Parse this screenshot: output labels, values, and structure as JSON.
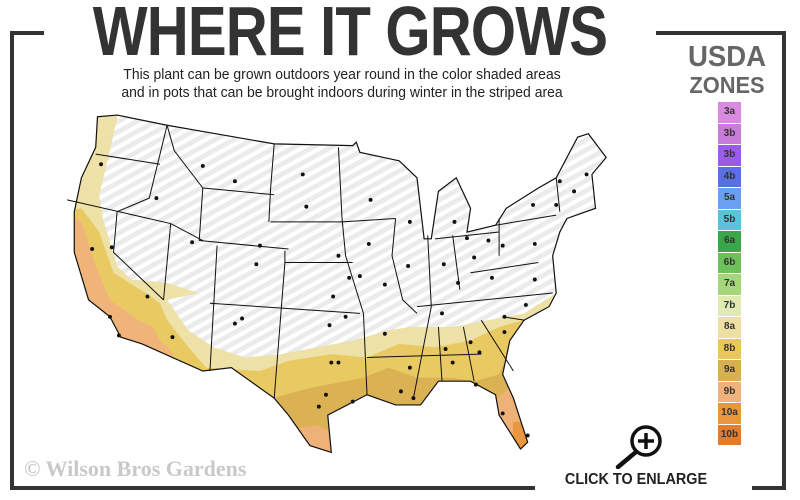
{
  "header": {
    "title": "WHERE IT GROWS",
    "subtitle_line1": "This plant can be grown outdoors year round in the color shaded areas",
    "subtitle_line2": "and in pots that can be brought indoors during winter in the striped area"
  },
  "legend": {
    "title_line1": "USDA",
    "title_line2": "ZONES",
    "zones": [
      {
        "label": "3a",
        "color": "#d98ae0"
      },
      {
        "label": "3b",
        "color": "#c67cd8"
      },
      {
        "label": "3b",
        "color": "#9a5ce6"
      },
      {
        "label": "4b",
        "color": "#5a6fe0"
      },
      {
        "label": "5a",
        "color": "#6b9ff0"
      },
      {
        "label": "5b",
        "color": "#5cc2dc"
      },
      {
        "label": "6a",
        "color": "#3aa64a"
      },
      {
        "label": "6b",
        "color": "#6cc15a"
      },
      {
        "label": "7a",
        "color": "#a7d57a"
      },
      {
        "label": "7b",
        "color": "#e0ebb2"
      },
      {
        "label": "8a",
        "color": "#eee0a2"
      },
      {
        "label": "8b",
        "color": "#e8c85c"
      },
      {
        "label": "9a",
        "color": "#d8b052"
      },
      {
        "label": "9b",
        "color": "#f0b27c"
      },
      {
        "label": "10a",
        "color": "#e9963c"
      },
      {
        "label": "10b",
        "color": "#e07d30"
      }
    ]
  },
  "map": {
    "striped_area_color": "#ebebeb",
    "zone_colors_shown": [
      "8a",
      "8b",
      "9a",
      "9b",
      "10a",
      "10b"
    ]
  },
  "footer": {
    "copyright": "© Wilson Bros Gardens",
    "enlarge_label": "CLICK TO ENLARGE",
    "enlarge_icon": "zoom-in-icon"
  }
}
